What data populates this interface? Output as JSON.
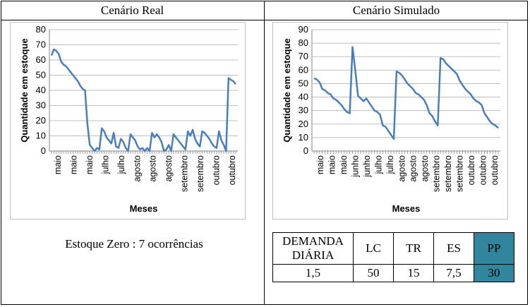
{
  "left": {
    "title": "Cenário Real",
    "note": "Estoque Zero : 7 ocorrências"
  },
  "right": {
    "title": "Cenário Simulado",
    "table": {
      "headers": [
        "DEMANDA DIÁRIA",
        "LC",
        "TR",
        "ES",
        "PP"
      ],
      "values": [
        "1,5",
        "50",
        "15",
        "7,5",
        "30"
      ],
      "highlight_color": "#31859c"
    }
  },
  "chart_data": [
    {
      "type": "line",
      "title": "",
      "xlabel": "Meses",
      "ylabel": "Quantidade em estoque",
      "ylim": [
        0,
        80
      ],
      "yticks": [
        0,
        10,
        20,
        30,
        40,
        50,
        60,
        70,
        80
      ],
      "xtick_labels": [
        "maio",
        "maio",
        "maio",
        "julho",
        "julho",
        "agosto",
        "agosto",
        "agosto",
        "setembro",
        "setembro",
        "outubro",
        "outubro"
      ],
      "grid": "horizontal",
      "line_color": "#4a7ebb",
      "series": [
        {
          "values": [
            63,
            67,
            66,
            64,
            59,
            57,
            56,
            54,
            52,
            50,
            48,
            46,
            43,
            41,
            40,
            18,
            4,
            2,
            0,
            2,
            1,
            15,
            13,
            9,
            7,
            5,
            12,
            3,
            2,
            8,
            6,
            2,
            0,
            11,
            9,
            7,
            3,
            1,
            2,
            0,
            2,
            0,
            12,
            9,
            11,
            9,
            6,
            0,
            1,
            4,
            0,
            11,
            9,
            7,
            5,
            3,
            1,
            13,
            10,
            14,
            8,
            5,
            3,
            13,
            12,
            10,
            8,
            5,
            3,
            2,
            13,
            7,
            4,
            0,
            48,
            47,
            46,
            44
          ]
        }
      ]
    },
    {
      "type": "line",
      "title": "",
      "xlabel": "Meses",
      "ylabel": "Quantidade em estoque",
      "ylim": [
        0,
        90
      ],
      "yticks": [
        0,
        10,
        20,
        30,
        40,
        50,
        60,
        70,
        80,
        90
      ],
      "xtick_labels": [
        "maio",
        "maio",
        "maio",
        "junho",
        "junho",
        "julho",
        "julho",
        "agosto",
        "agosto",
        "agosto",
        "setembro",
        "setembro",
        "setembro",
        "outubro",
        "outubro",
        "outubro"
      ],
      "grid": "horizontal",
      "line_color": "#4a7ebb",
      "series": [
        {
          "values": [
            54,
            53,
            51,
            46,
            45,
            43,
            42,
            39,
            38,
            36,
            34,
            31,
            29,
            28,
            77,
            60,
            41,
            39,
            37,
            39,
            36,
            33,
            30,
            29,
            27,
            19,
            18,
            15,
            12,
            9,
            59,
            58,
            56,
            53,
            50,
            48,
            46,
            43,
            42,
            40,
            38,
            34,
            28,
            26,
            22,
            19,
            69,
            68,
            65,
            63,
            61,
            59,
            57,
            52,
            49,
            46,
            44,
            42,
            39,
            37,
            36,
            34,
            28,
            25,
            22,
            20,
            19,
            17
          ]
        }
      ]
    }
  ]
}
